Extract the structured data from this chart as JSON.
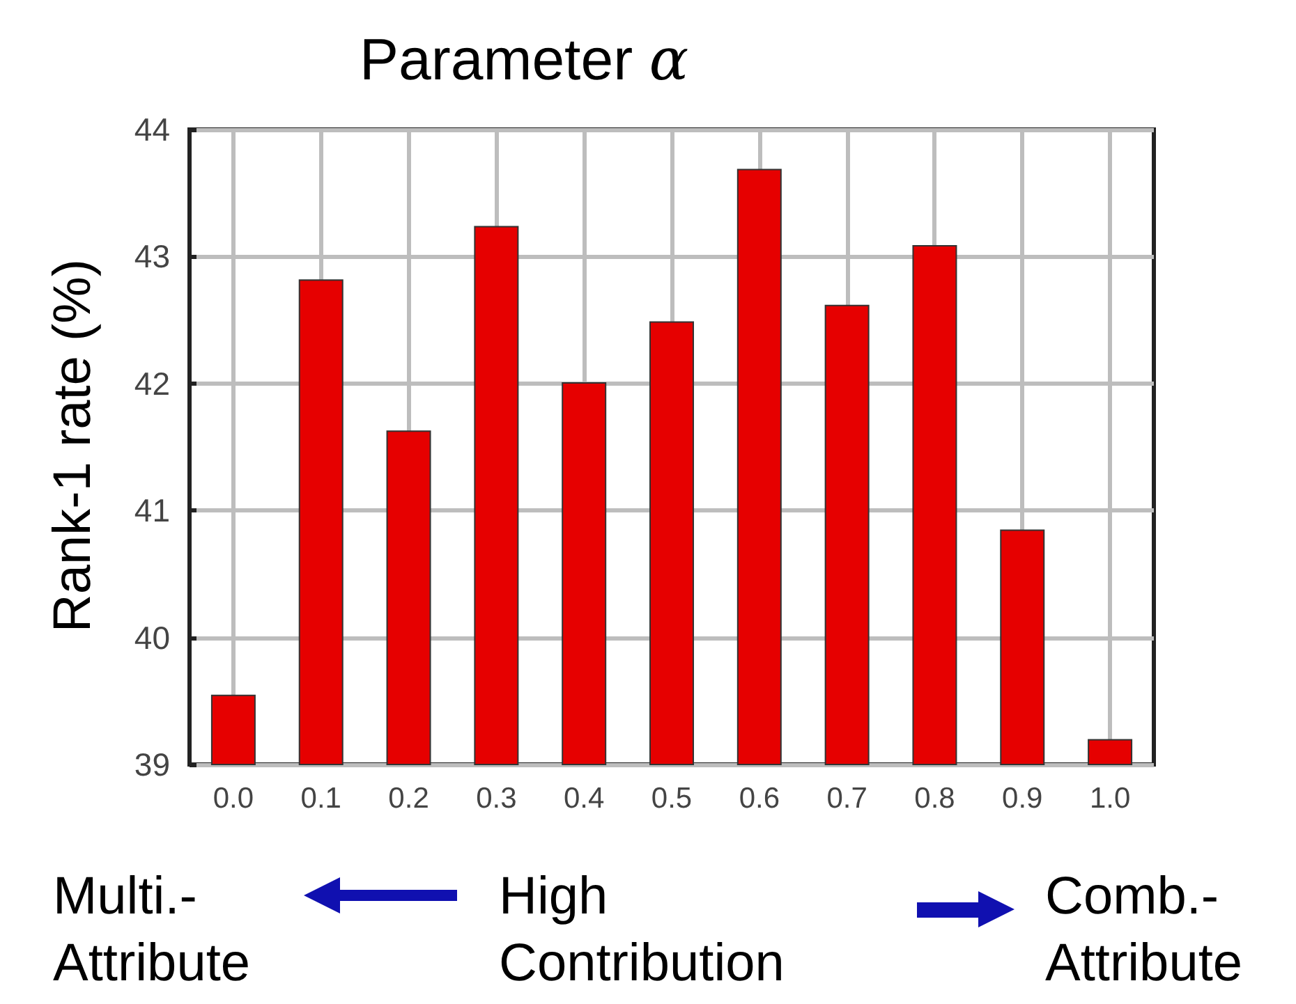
{
  "chart_data": {
    "type": "bar",
    "title": "Parameter α",
    "ylabel": "Rank-1 rate (%)",
    "categories": [
      "0.0",
      "0.1",
      "0.2",
      "0.3",
      "0.4",
      "0.5",
      "0.6",
      "0.7",
      "0.8",
      "0.9",
      "1.0"
    ],
    "values": [
      39.55,
      42.82,
      41.63,
      43.24,
      42.01,
      42.49,
      43.69,
      42.62,
      43.09,
      40.85,
      39.2
    ],
    "color": "#e60000",
    "ylim": [
      39,
      44
    ],
    "yticks": [
      39,
      40,
      41,
      42,
      43,
      44
    ],
    "grid": true,
    "annotations": [
      "Multi.-\nAttribute",
      "High\nContribution",
      "Comb.-\nAttribute"
    ]
  }
}
